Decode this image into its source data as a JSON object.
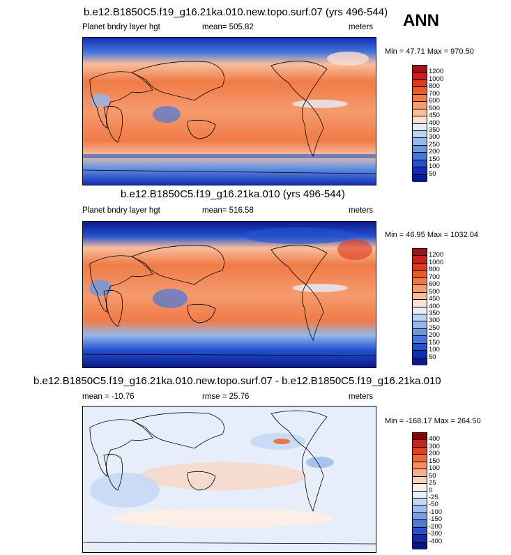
{
  "season": "ANN",
  "panels": [
    {
      "title": "b.e12.B1850C5.f19_g16.21ka.010.new.topo.surf.07 (yrs 496-544)",
      "variable": "Planet bndry layer hgt",
      "stat": "mean= 505.82",
      "units": "meters",
      "minmax": "Min =  47.71 Max = 970.50",
      "levels": [
        "1200",
        "1000",
        "800",
        "700",
        "600",
        "500",
        "450",
        "400",
        "350",
        "300",
        "250",
        "200",
        "150",
        "100",
        "50"
      ],
      "colors": [
        "#a50f15",
        "#c9201b",
        "#de3a1f",
        "#e85a2b",
        "#f07b47",
        "#f59b6e",
        "#f9bd9c",
        "#fde0cf",
        "#e3eefa",
        "#bcd4f3",
        "#93b8ec",
        "#6a98e3",
        "#4676dc",
        "#2452cf",
        "#0f2fb8",
        "#0a1a8c"
      ]
    },
    {
      "title": "b.e12.B1850C5.f19_g16.21ka.010 (yrs 496-544)",
      "variable": "Planet bndry layer hgt",
      "stat": "mean= 516.58",
      "units": "meters",
      "minmax": "Min =  46.95 Max = 1032.04",
      "levels": [
        "1200",
        "1000",
        "800",
        "700",
        "600",
        "500",
        "450",
        "400",
        "350",
        "300",
        "250",
        "200",
        "150",
        "100",
        "50"
      ],
      "colors": [
        "#a50f15",
        "#c9201b",
        "#de3a1f",
        "#e85a2b",
        "#f07b47",
        "#f59b6e",
        "#f9bd9c",
        "#fde0cf",
        "#e3eefa",
        "#bcd4f3",
        "#93b8ec",
        "#6a98e3",
        "#4676dc",
        "#2452cf",
        "#0f2fb8",
        "#0a1a8c"
      ]
    },
    {
      "title": "b.e12.B1850C5.f19_g16.21ka.010.new.topo.surf.07 - b.e12.B1850C5.f19_g16.21ka.010",
      "variable": "mean = -10.76",
      "stat": "rmse =  25.76",
      "units": "meters",
      "minmax": "Min = -168.17 Max = 264.50",
      "levels": [
        "400",
        "300",
        "200",
        "150",
        "100",
        "50",
        "25",
        "0",
        "-25",
        "-50",
        "-100",
        "-150",
        "-200",
        "-300",
        "-400"
      ],
      "colors": [
        "#8b0000",
        "#c9201b",
        "#e2411f",
        "#ee6a38",
        "#f48e5c",
        "#f8b08c",
        "#fbd3bd",
        "#fdeee4",
        "#e6eefa",
        "#c7d8f5",
        "#9fbded",
        "#7aa0e6",
        "#4d78dc",
        "#2a4fcf",
        "#1428ab",
        "#0a157a"
      ]
    }
  ]
}
